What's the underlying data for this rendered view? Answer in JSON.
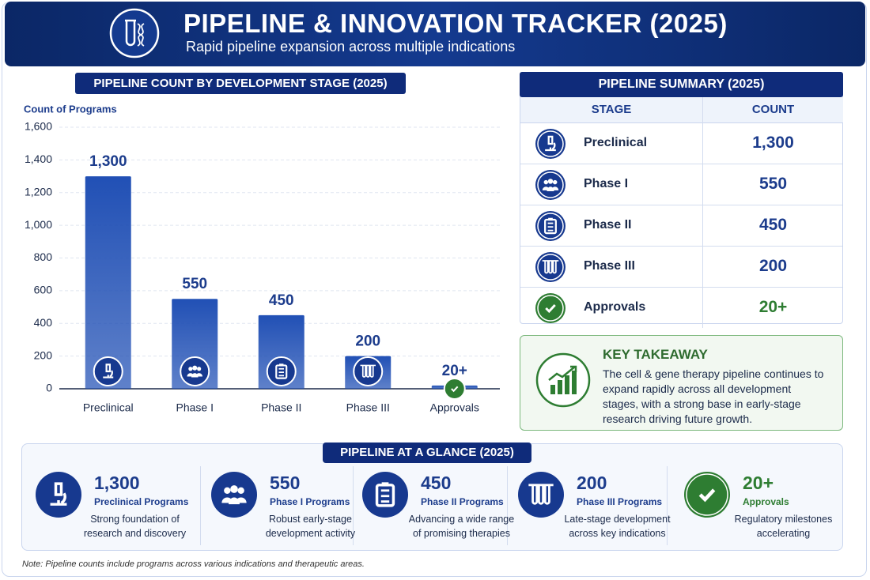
{
  "header": {
    "title": "PIPELINE & INNOVATION TRACKER (2025)",
    "subtitle": "Rapid pipeline expansion across multiple indications"
  },
  "chart_data": {
    "type": "bar",
    "title": "PIPELINE COUNT BY DEVELOPMENT STAGE (2025)",
    "y_label": "Count of Programs",
    "categories": [
      "Preclinical",
      "Phase I",
      "Phase II",
      "Phase III",
      "Approvals"
    ],
    "values": [
      1300,
      550,
      450,
      200,
      20
    ],
    "value_labels": [
      "1,300",
      "550",
      "450",
      "200",
      "20+"
    ],
    "color": "#2150b5",
    "ylim": [
      0,
      1600
    ],
    "yticks": [
      0,
      200,
      400,
      600,
      800,
      {
        "value": 1000,
        "label": "1,000"
      },
      {
        "value": 1200,
        "label": "1,200"
      },
      {
        "value": 1400,
        "label": "1,400"
      },
      {
        "value": 1600,
        "label": "1,600"
      }
    ],
    "grid": true
  },
  "summary": {
    "title": "PIPELINE SUMMARY (2025)",
    "columns": [
      "STAGE",
      "COUNT"
    ],
    "rows": [
      [
        "Preclinical",
        "1,300"
      ],
      [
        "Phase I",
        "550"
      ],
      [
        "Phase II",
        "450"
      ],
      [
        "Phase III",
        "200"
      ],
      [
        "Approvals",
        "20+"
      ]
    ]
  },
  "takeaway": {
    "title": "KEY TAKEAWAY",
    "text": "The cell & gene therapy pipeline continues to expand rapidly across all development stages, with a strong base in early-stage research driving future growth."
  },
  "glance": {
    "title": "PIPELINE AT A GLANCE (2025)",
    "cards": [
      {
        "value": "1,300",
        "label": "Preclinical Programs",
        "text": "Strong foundation of research and discovery"
      },
      {
        "value": "550",
        "label": "Phase I Programs",
        "text": "Robust early-stage development activity"
      },
      {
        "value": "450",
        "label": "Phase II Programs",
        "text": "Advancing a wide range of promising therapies"
      },
      {
        "value": "200",
        "label": "Phase III Programs",
        "text": "Late-stage development across key indications"
      },
      {
        "value": "20+",
        "label": "Approvals",
        "text": "Regulatory milestones accelerating"
      }
    ]
  },
  "note": "Note: Pipeline counts include programs across various indications and therapeutic areas."
}
